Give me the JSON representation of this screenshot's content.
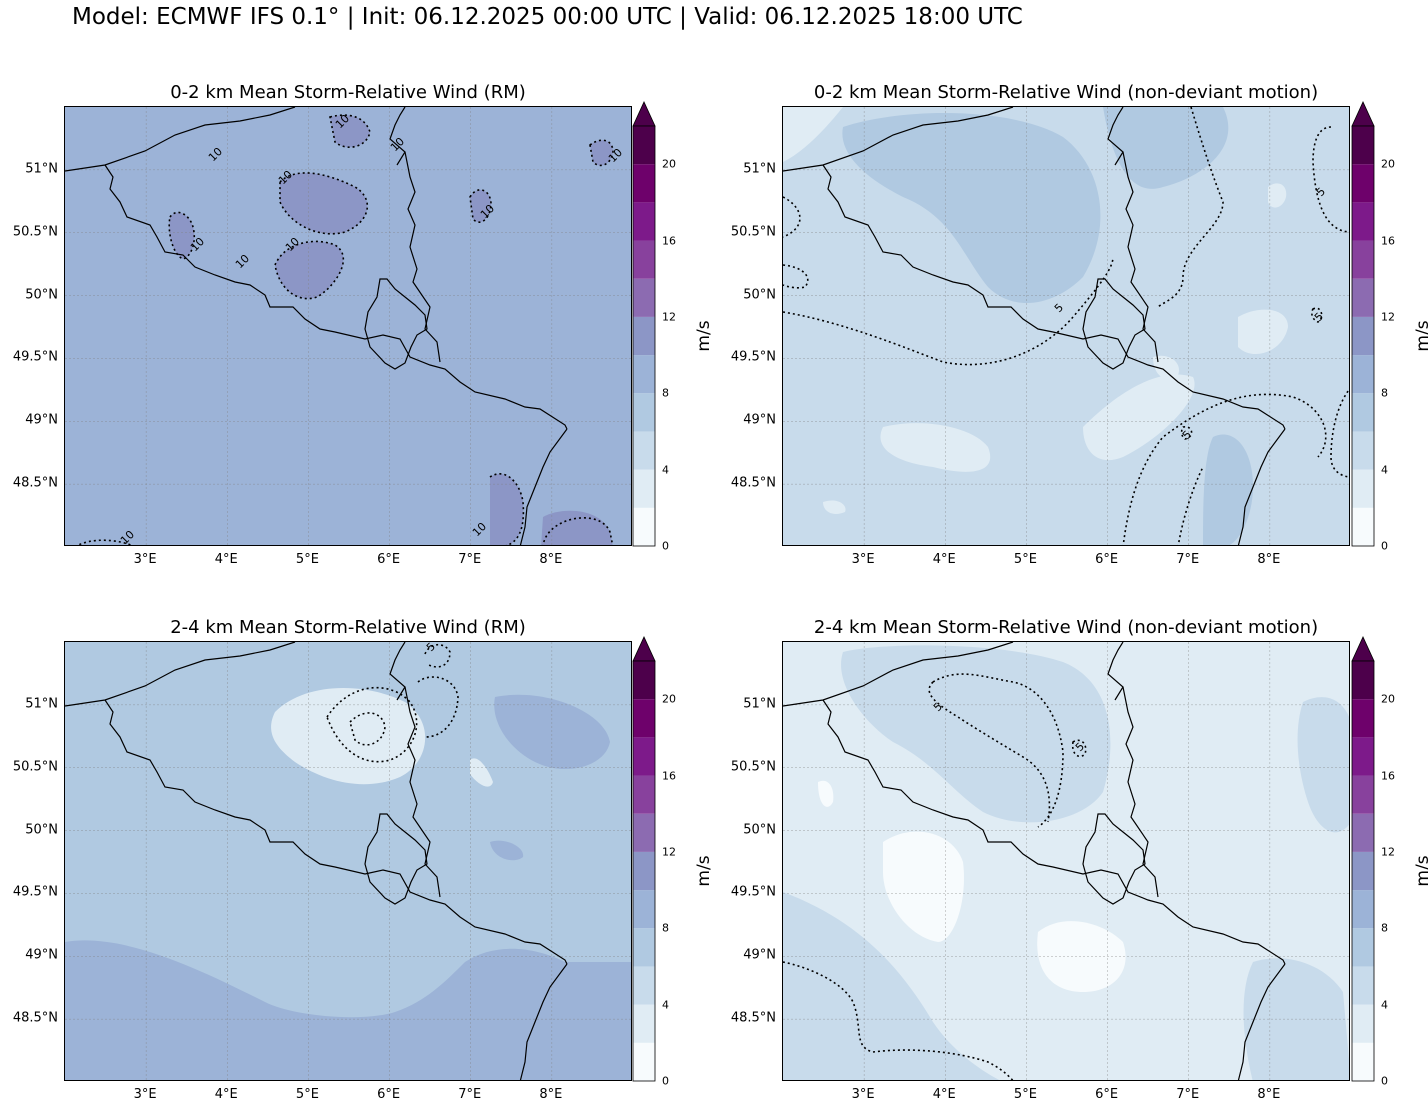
{
  "figure": {
    "suptitle": "Model: ECMWF IFS 0.1° | Init: 06.12.2025 00:00 UTC | Valid: 06.12.2025 18:00 UTC"
  },
  "map_extent": {
    "lon": [
      2.0,
      9.0
    ],
    "lat": [
      48.0,
      51.5
    ]
  },
  "lat_ticks": [
    {
      "value": 51.0,
      "label": "51°N"
    },
    {
      "value": 50.5,
      "label": "50.5°N"
    },
    {
      "value": 50.0,
      "label": "50°N"
    },
    {
      "value": 49.5,
      "label": "49.5°N"
    },
    {
      "value": 49.0,
      "label": "49°N"
    },
    {
      "value": 48.5,
      "label": "48.5°N"
    }
  ],
  "lon_ticks": [
    {
      "value": 3,
      "label": "3°E"
    },
    {
      "value": 4,
      "label": "4°E"
    },
    {
      "value": 5,
      "label": "5°E"
    },
    {
      "value": 6,
      "label": "6°E"
    },
    {
      "value": 7,
      "label": "7°E"
    },
    {
      "value": 8,
      "label": "8°E"
    }
  ],
  "colorbar": {
    "label": "m/s",
    "range": [
      0,
      22
    ],
    "extend": "max",
    "levels": [
      0,
      2,
      4,
      6,
      8,
      10,
      12,
      14,
      16,
      18,
      20,
      22
    ],
    "tick_labels": [
      "0",
      "4",
      "8",
      "12",
      "16",
      "20"
    ],
    "tick_values": [
      0,
      4,
      8,
      12,
      16,
      20
    ],
    "colors": [
      "#f7fbfd",
      "#e0ecf4",
      "#c8dbeb",
      "#b0c9e1",
      "#9cb3d7",
      "#8c96c6",
      "#8c6bb1",
      "#88419d",
      "#7d1a8a",
      "#6e016b",
      "#4d004b"
    ],
    "extend_color": "#4d004b"
  },
  "panels": [
    {
      "title": "0-2 km Mean Storm-Relative Wind (RM)",
      "base_color": "#9cb3d7",
      "contour_labels": [
        "10",
        "10",
        "10",
        "10",
        "10",
        "10",
        "10",
        "10",
        "10",
        "10",
        "10"
      ]
    },
    {
      "title": "0-2 km Mean Storm-Relative Wind (non-deviant motion)",
      "base_color": "#c8dbeb",
      "contour_labels": [
        "5",
        "5",
        "5",
        "5"
      ]
    },
    {
      "title": "2-4 km Mean Storm-Relative Wind (RM)",
      "base_color": "#b0c9e1",
      "contour_labels": [
        "5"
      ]
    },
    {
      "title": "2-4 km Mean Storm-Relative Wind (non-deviant motion)",
      "base_color": "#e0ecf4",
      "contour_labels": [
        "5",
        "5"
      ]
    }
  ]
}
